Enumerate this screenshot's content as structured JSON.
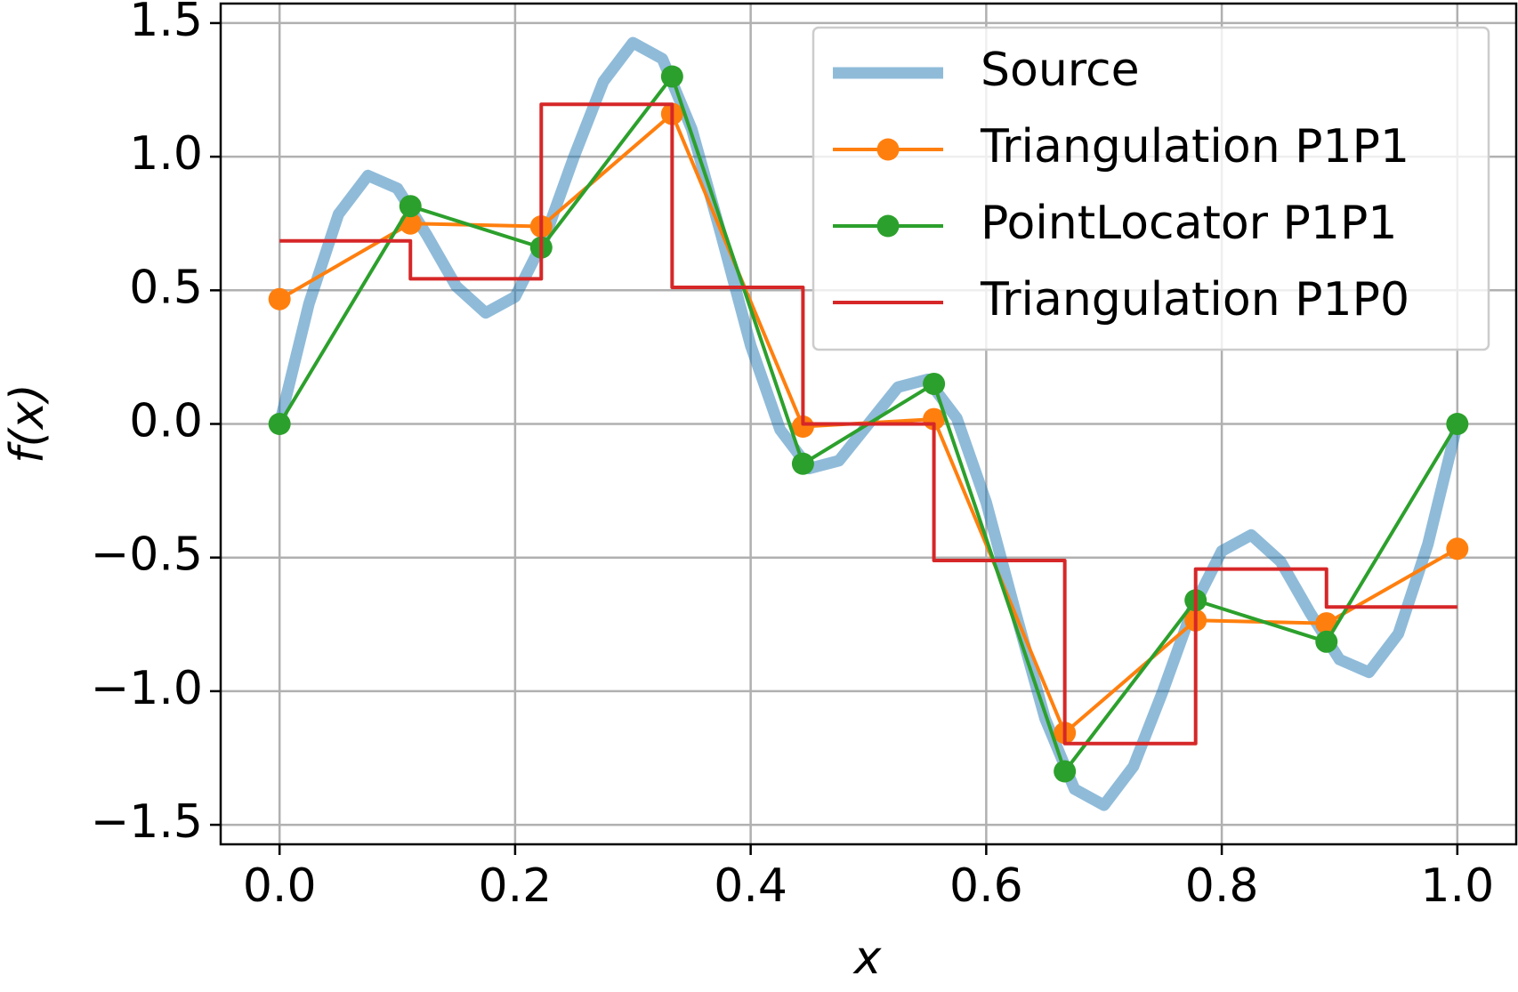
{
  "chart_data": {
    "type": "line",
    "xlabel": "x",
    "ylabel": "f(x)",
    "xlim": [
      -0.05,
      1.05
    ],
    "ylim": [
      -1.573,
      1.573
    ],
    "xticks": [
      {
        "value": 0,
        "label": "0.0"
      },
      0.2,
      0.4,
      0.6,
      0.8,
      {
        "value": 1,
        "label": "1.0"
      }
    ],
    "yticks": [
      {
        "value": -1.5,
        "label": "−1.5"
      },
      {
        "value": -1,
        "label": "−1.0"
      },
      {
        "value": -0.5,
        "label": "−0.5"
      },
      {
        "value": 0,
        "label": "0.0"
      },
      0.5,
      {
        "value": 1,
        "label": "1.0"
      },
      1.5
    ],
    "grid": true,
    "legend": "upper right",
    "series": [
      {
        "name": "Source",
        "color": "#1f77b4",
        "style": "thick",
        "x": [
          0,
          0.025,
          0.05,
          0.075,
          0.1,
          0.125,
          0.15,
          0.175,
          0.2,
          0.225,
          0.25,
          0.275,
          0.3,
          0.325,
          0.35,
          0.375,
          0.4,
          0.425,
          0.45,
          0.475,
          0.5,
          0.525,
          0.55,
          0.575,
          0.6,
          0.625,
          0.65,
          0.675,
          0.7,
          0.725,
          0.75,
          0.775,
          0.8,
          0.825,
          0.85,
          0.875,
          0.9,
          0.925,
          0.95,
          0.975,
          1
        ],
        "values": [
          0,
          0.4503,
          0.7845,
          0.9295,
          0.8817,
          0.7071,
          0.5151,
          0.4155,
          0.4756,
          0.6938,
          1,
          1.2816,
          1.4266,
          1.3665,
          1.1029,
          0.7071,
          0.2939,
          -0.0215,
          -0.1665,
          -0.1375,
          0,
          0.1375,
          0.1665,
          0.0215,
          -0.2939,
          -0.7071,
          -1.1029,
          -1.3665,
          -1.4266,
          -1.2816,
          -1,
          -0.6938,
          -0.4756,
          -0.4155,
          -0.5151,
          -0.7071,
          -0.8817,
          -0.9295,
          -0.7845,
          -0.4503,
          0
        ]
      },
      {
        "name": "Triangulation P1P1",
        "color": "#ff7f0e",
        "style": "marker",
        "x": [
          0,
          0.1111,
          0.2222,
          0.3333,
          0.4444,
          0.5556,
          0.6667,
          0.7778,
          0.8889,
          1
        ],
        "values": [
          0.467,
          0.75,
          0.739,
          1.16,
          -0.01,
          0.018,
          -1.156,
          -0.735,
          -0.746,
          -0.467
        ]
      },
      {
        "name": "PointLocator P1P1",
        "color": "#2ca02c",
        "style": "marker",
        "x": [
          0,
          0.1111,
          0.2222,
          0.3333,
          0.4444,
          0.5556,
          0.6667,
          0.7778,
          0.8889,
          1
        ],
        "values": [
          0,
          0.815,
          0.66,
          1.3,
          -0.149,
          0.15,
          -1.3,
          -0.66,
          -0.815,
          0
        ]
      },
      {
        "name": "Triangulation P1P0",
        "color": "#d62728",
        "style": "step",
        "x": [
          0,
          0.1111,
          0.2222,
          0.3333,
          0.4444,
          0.5556,
          0.6667,
          0.7778,
          0.8889,
          1
        ],
        "values": [
          0.685,
          0.543,
          1.196,
          0.511,
          0,
          -0.511,
          -1.196,
          -0.543,
          -0.685,
          -0.685
        ]
      }
    ]
  }
}
